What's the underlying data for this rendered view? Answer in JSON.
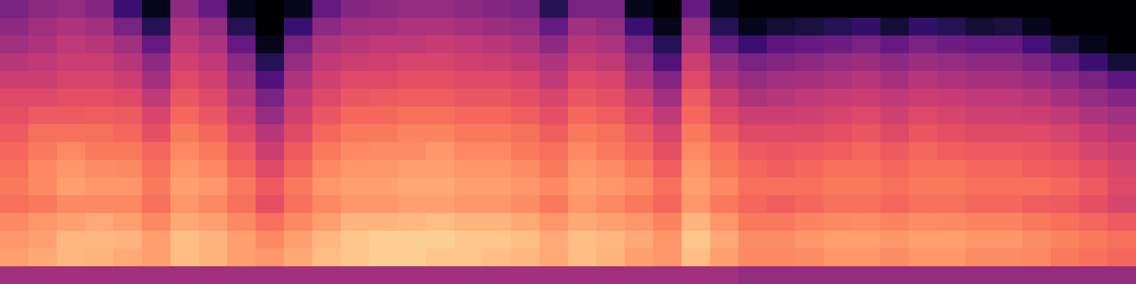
{
  "chart_data": {
    "type": "heatmap",
    "color": "magma",
    "color_range": [
      0,
      100
    ],
    "tick_labels": false,
    "frames": [
      [
        35,
        40,
        45,
        50,
        55,
        60,
        62,
        65,
        68,
        70,
        72,
        70,
        75,
        78,
        80,
        45
      ],
      [
        40,
        45,
        48,
        52,
        55,
        60,
        65,
        70,
        72,
        75,
        75,
        72,
        78,
        80,
        82,
        45
      ],
      [
        42,
        48,
        52,
        55,
        58,
        62,
        65,
        70,
        75,
        78,
        80,
        75,
        80,
        85,
        85,
        45
      ],
      [
        38,
        45,
        50,
        55,
        58,
        62,
        66,
        70,
        72,
        76,
        78,
        75,
        82,
        85,
        84,
        45
      ],
      [
        20,
        35,
        45,
        50,
        55,
        60,
        65,
        68,
        72,
        75,
        78,
        75,
        80,
        84,
        82,
        45
      ],
      [
        5,
        15,
        30,
        40,
        45,
        52,
        58,
        62,
        68,
        70,
        72,
        70,
        75,
        80,
        80,
        45
      ],
      [
        40,
        48,
        52,
        56,
        60,
        64,
        68,
        72,
        75,
        78,
        80,
        78,
        82,
        86,
        86,
        45
      ],
      [
        30,
        42,
        48,
        52,
        56,
        60,
        64,
        68,
        72,
        75,
        78,
        75,
        80,
        84,
        84,
        45
      ],
      [
        5,
        15,
        30,
        40,
        45,
        50,
        55,
        60,
        65,
        68,
        72,
        70,
        75,
        80,
        80,
        45
      ],
      [
        0,
        0,
        5,
        15,
        25,
        35,
        42,
        50,
        55,
        60,
        65,
        62,
        70,
        75,
        78,
        45
      ],
      [
        5,
        20,
        35,
        42,
        48,
        52,
        56,
        60,
        65,
        68,
        72,
        70,
        75,
        80,
        82,
        45
      ],
      [
        30,
        40,
        48,
        52,
        56,
        60,
        64,
        68,
        72,
        75,
        78,
        75,
        80,
        85,
        86,
        45
      ],
      [
        38,
        45,
        50,
        55,
        60,
        64,
        68,
        72,
        75,
        78,
        80,
        78,
        84,
        88,
        88,
        45
      ],
      [
        40,
        46,
        52,
        56,
        60,
        65,
        68,
        72,
        76,
        78,
        80,
        78,
        84,
        90,
        90,
        45
      ],
      [
        42,
        48,
        52,
        58,
        62,
        66,
        70,
        74,
        76,
        80,
        82,
        80,
        85,
        90,
        90,
        45
      ],
      [
        42,
        48,
        54,
        58,
        62,
        66,
        70,
        74,
        78,
        80,
        82,
        80,
        86,
        90,
        88,
        45
      ],
      [
        40,
        46,
        52,
        56,
        60,
        64,
        68,
        72,
        75,
        78,
        80,
        78,
        84,
        88,
        88,
        45
      ],
      [
        38,
        44,
        50,
        55,
        60,
        64,
        68,
        72,
        75,
        78,
        80,
        78,
        84,
        88,
        86,
        45
      ],
      [
        35,
        42,
        48,
        52,
        58,
        62,
        66,
        70,
        72,
        76,
        78,
        76,
        82,
        86,
        85,
        45
      ],
      [
        15,
        30,
        40,
        48,
        52,
        58,
        62,
        66,
        70,
        72,
        75,
        72,
        78,
        82,
        82,
        45
      ],
      [
        35,
        45,
        50,
        55,
        60,
        64,
        68,
        72,
        75,
        78,
        80,
        78,
        82,
        86,
        86,
        45
      ],
      [
        35,
        42,
        48,
        52,
        58,
        62,
        66,
        70,
        72,
        76,
        78,
        75,
        80,
        85,
        84,
        45
      ],
      [
        5,
        20,
        35,
        42,
        48,
        55,
        60,
        65,
        68,
        72,
        75,
        72,
        78,
        82,
        80,
        45
      ],
      [
        0,
        5,
        15,
        25,
        38,
        45,
        52,
        58,
        62,
        66,
        70,
        68,
        74,
        78,
        78,
        45
      ],
      [
        30,
        42,
        48,
        55,
        60,
        65,
        68,
        72,
        75,
        78,
        80,
        78,
        84,
        88,
        86,
        45
      ],
      [
        5,
        15,
        30,
        42,
        48,
        55,
        60,
        65,
        70,
        72,
        75,
        72,
        78,
        82,
        80,
        45
      ],
      [
        0,
        5,
        20,
        35,
        42,
        48,
        55,
        60,
        65,
        68,
        70,
        68,
        72,
        76,
        75,
        42
      ],
      [
        0,
        10,
        28,
        38,
        45,
        50,
        55,
        60,
        64,
        66,
        70,
        66,
        72,
        76,
        75,
        42
      ],
      [
        0,
        12,
        30,
        40,
        46,
        52,
        56,
        60,
        65,
        68,
        70,
        68,
        74,
        78,
        76,
        42
      ],
      [
        0,
        15,
        32,
        42,
        48,
        54,
        58,
        62,
        66,
        70,
        72,
        70,
        75,
        80,
        78,
        42
      ],
      [
        0,
        18,
        35,
        44,
        50,
        55,
        60,
        64,
        68,
        70,
        72,
        70,
        76,
        80,
        78,
        42
      ],
      [
        0,
        10,
        30,
        40,
        46,
        52,
        56,
        60,
        65,
        68,
        70,
        68,
        74,
        78,
        76,
        42
      ],
      [
        0,
        18,
        35,
        44,
        50,
        55,
        60,
        64,
        68,
        70,
        72,
        70,
        76,
        80,
        78,
        42
      ],
      [
        0,
        15,
        32,
        42,
        48,
        54,
        58,
        62,
        66,
        70,
        72,
        70,
        75,
        80,
        78,
        42
      ],
      [
        0,
        10,
        30,
        40,
        46,
        52,
        56,
        60,
        65,
        68,
        70,
        68,
        74,
        78,
        76,
        42
      ],
      [
        0,
        12,
        30,
        40,
        46,
        52,
        56,
        60,
        65,
        68,
        70,
        68,
        74,
        78,
        76,
        42
      ],
      [
        0,
        5,
        22,
        36,
        44,
        50,
        55,
        60,
        64,
        66,
        70,
        66,
        72,
        76,
        75,
        42
      ],
      [
        0,
        0,
        12,
        30,
        40,
        46,
        52,
        58,
        62,
        65,
        68,
        65,
        70,
        74,
        72,
        42
      ],
      [
        0,
        0,
        5,
        20,
        35,
        42,
        48,
        54,
        58,
        62,
        65,
        62,
        68,
        72,
        70,
        42
      ],
      [
        0,
        0,
        0,
        10,
        28,
        38,
        45,
        50,
        55,
        58,
        60,
        58,
        65,
        70,
        68,
        42
      ]
    ]
  }
}
